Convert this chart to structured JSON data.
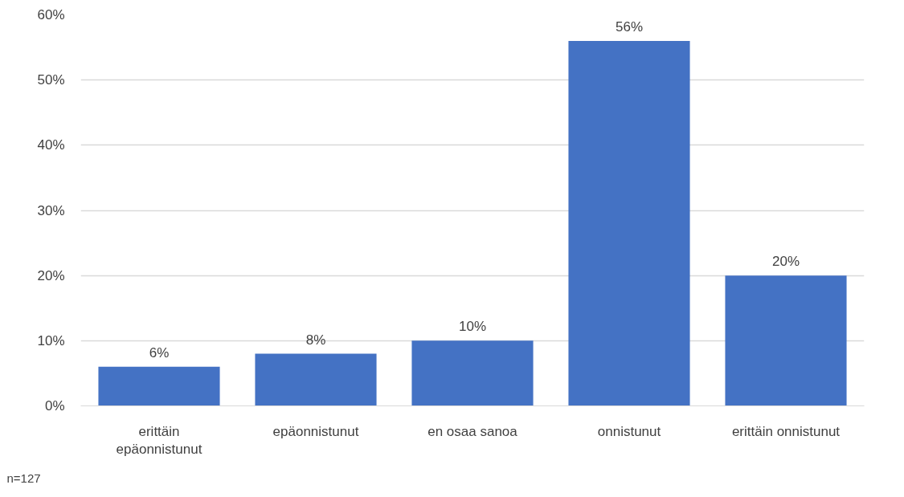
{
  "chart_data": {
    "type": "bar",
    "categories": [
      "erittäin epäonnistunut",
      "epäonnistunut",
      "en osaa sanoa",
      "onnistunut",
      "erittäin onnistunut"
    ],
    "values": [
      6,
      8,
      10,
      56,
      20
    ],
    "value_labels": [
      "6%",
      "8%",
      "10%",
      "56%",
      "20%"
    ],
    "color": "#4472c4",
    "ylim": [
      0,
      60
    ],
    "yticks": [
      {
        "value": 0,
        "label": "0%"
      },
      {
        "value": 10,
        "label": "10%"
      },
      {
        "value": 20,
        "label": "20%"
      },
      {
        "value": 30,
        "label": "30%"
      },
      {
        "value": 40,
        "label": "40%"
      },
      {
        "value": 50,
        "label": "50%"
      },
      {
        "value": 60,
        "label": "60%"
      }
    ],
    "grid": "y",
    "annotations": [
      "n=127"
    ]
  }
}
